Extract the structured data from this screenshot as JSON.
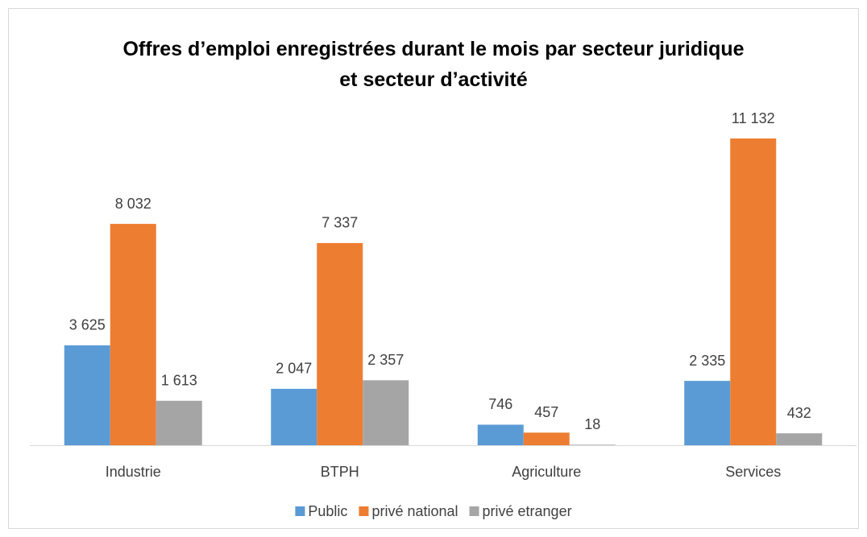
{
  "chart_data": {
    "type": "bar",
    "title": "Offres d’emploi enregistrées durant le mois par secteur juridique et secteur d’activité",
    "categories": [
      "Industrie",
      "BTPH",
      "Agriculture",
      "Services"
    ],
    "series": [
      {
        "name": "Public",
        "color": "#5b9bd5",
        "values": [
          3625,
          2047,
          746,
          2335
        ],
        "value_labels": [
          "3 625",
          "2 047",
          "746",
          "2 335"
        ]
      },
      {
        "name": "privé national",
        "color": "#ed7d31",
        "values": [
          8032,
          7337,
          457,
          11132
        ],
        "value_labels": [
          "8 032",
          "7 337",
          "457",
          "11 132"
        ]
      },
      {
        "name": "privé etranger",
        "color": "#a5a5a5",
        "values": [
          1613,
          2357,
          18,
          432
        ],
        "value_labels": [
          "1 613",
          "2 357",
          "18",
          "432"
        ]
      }
    ],
    "legend": "bottom"
  }
}
